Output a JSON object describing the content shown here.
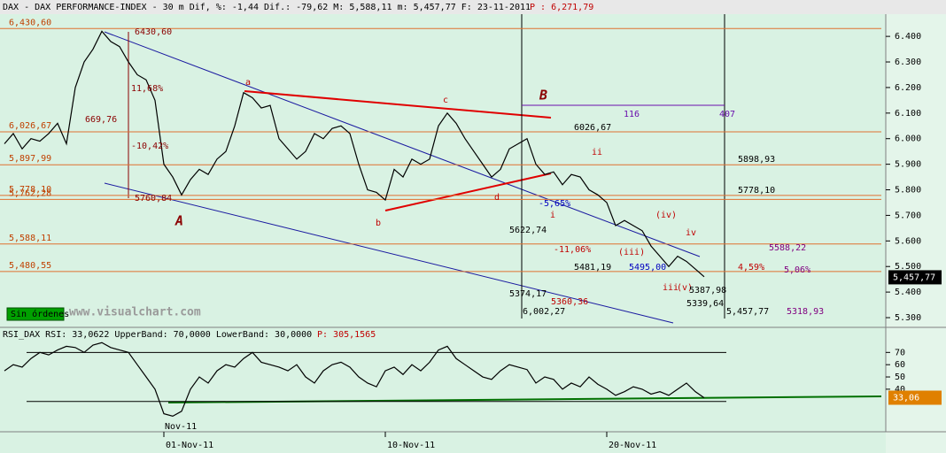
{
  "header_text": "DAX - DAX PERFORMANCE-INDEX -   30 m Dif, %: -1,44 Dif.: -79,62 M: 5,588,11 m: 5,457,77 F: 23-11-2011",
  "header_p": "P : 6,271,79",
  "status": "Sin órdenes",
  "watermark": "www.visualchart.com",
  "rsi_header": "RSI_DAX RSI: 33,0622 UpperBand: 70,0000 LowerBand: 30,0000",
  "rsi_p": "P: 305,1565",
  "month_label": "Nov-11",
  "chart_data": [
    {
      "type": "line",
      "color": "#000000",
      "ylim": [
        5262,
        6480
      ],
      "yticks": [
        {
          "value": 5300,
          "label": "5.300"
        },
        {
          "value": 5400,
          "label": "5.400"
        },
        {
          "value": 5500,
          "label": "5.500"
        },
        {
          "value": 5600,
          "label": "5.600"
        },
        {
          "value": 5700,
          "label": "5.700"
        },
        {
          "value": 5800,
          "label": "5.800"
        },
        {
          "value": 5900,
          "label": "5.900"
        },
        {
          "value": 6000,
          "label": "6.000"
        },
        {
          "value": 6100,
          "label": "6.100"
        },
        {
          "value": 6200,
          "label": "6.200"
        },
        {
          "value": 6300,
          "label": "6.300"
        },
        {
          "value": 6400,
          "label": "6.400"
        }
      ],
      "categories": [
        null,
        null,
        null,
        null,
        null,
        null,
        null,
        null,
        null,
        null,
        null,
        null,
        null,
        null,
        null,
        null,
        null,
        null,
        "01-Nov-11",
        null,
        null,
        null,
        null,
        null,
        null,
        null,
        null,
        null,
        null,
        null,
        null,
        null,
        null,
        null,
        null,
        null,
        null,
        null,
        null,
        null,
        null,
        null,
        null,
        "10-Nov-11",
        null,
        null,
        null,
        null,
        null,
        null,
        null,
        null,
        null,
        null,
        null,
        null,
        null,
        null,
        null,
        null,
        null,
        null,
        null,
        null,
        null,
        null,
        null,
        null,
        "20-Nov-11",
        null,
        null,
        null,
        null,
        null,
        null,
        null,
        null,
        null,
        null,
        null
      ],
      "values": [
        5980,
        6020,
        5960,
        6000,
        5990,
        6020,
        6060,
        5980,
        6200,
        6300,
        6350,
        6420,
        6380,
        6360,
        6300,
        6250,
        6230,
        6150,
        5900,
        5850,
        5780,
        5840,
        5880,
        5860,
        5920,
        5950,
        6050,
        6180,
        6160,
        6120,
        6130,
        6000,
        5960,
        5920,
        5950,
        6020,
        6000,
        6040,
        6050,
        6020,
        5900,
        5800,
        5790,
        5760,
        5880,
        5850,
        5920,
        5900,
        5920,
        6050,
        6100,
        6060,
        6000,
        5950,
        5900,
        5850,
        5880,
        5960,
        5980,
        6000,
        5900,
        5860,
        5870,
        5820,
        5860,
        5850,
        5800,
        5780,
        5750,
        5660,
        5680,
        5660,
        5640,
        5580,
        5540,
        5500,
        5540,
        5520,
        5490,
        5460
      ],
      "levels": [
        {
          "value": 6430.6,
          "label": "6,430,60"
        },
        {
          "value": 6026.67,
          "label": "6,026,67"
        },
        {
          "value": 5897.99,
          "label": "5,897,99"
        },
        {
          "value": 5778.1,
          "label": "5,778,10"
        },
        {
          "value": 5762.28,
          "label": "5,762,28"
        },
        {
          "value": 5588.11,
          "label": "5,588,11"
        },
        {
          "value": 5480.55,
          "label": "5,480,55"
        }
      ],
      "last_label": {
        "value": 5457.77,
        "label": "5,457,77"
      },
      "annotations": [
        "A",
        "B",
        "a",
        "b",
        "c",
        "d",
        "i",
        "ii",
        "iii",
        "iv",
        "(iii)",
        "(iv)",
        "(v)",
        "669,76",
        "-10,42%",
        "11,68%",
        "6430,60",
        "5760,84",
        "116",
        "407",
        "6026,67",
        "5622,74",
        "5374,17",
        "5360,36",
        "6,002,27",
        "5481,19",
        "5495,00",
        "5387,98",
        "5339,64",
        "5,457,77",
        "5318,93",
        "5898,93",
        "5778,10",
        "5588,22",
        "4,59%",
        "5,06%",
        "-11,06%",
        "-5,65%"
      ]
    },
    {
      "type": "line",
      "color": "#000000",
      "ylim": [
        6,
        89
      ],
      "yticks": [
        40,
        50,
        60,
        70
      ],
      "bands": [
        30,
        70
      ],
      "values": [
        55,
        60,
        58,
        65,
        70,
        68,
        72,
        75,
        74,
        70,
        76,
        78,
        74,
        72,
        70,
        60,
        50,
        40,
        20,
        18,
        22,
        40,
        50,
        45,
        55,
        60,
        58,
        65,
        70,
        62,
        60,
        58,
        55,
        60,
        50,
        45,
        55,
        60,
        62,
        58,
        50,
        45,
        42,
        55,
        58,
        52,
        60,
        55,
        62,
        72,
        75,
        65,
        60,
        55,
        50,
        48,
        55,
        60,
        58,
        56,
        45,
        50,
        48,
        40,
        45,
        42,
        50,
        44,
        40,
        35,
        38,
        42,
        40,
        36,
        38,
        35,
        40,
        45,
        38,
        33
      ],
      "last_label": {
        "value": 33.06,
        "label": "33,06"
      }
    }
  ]
}
